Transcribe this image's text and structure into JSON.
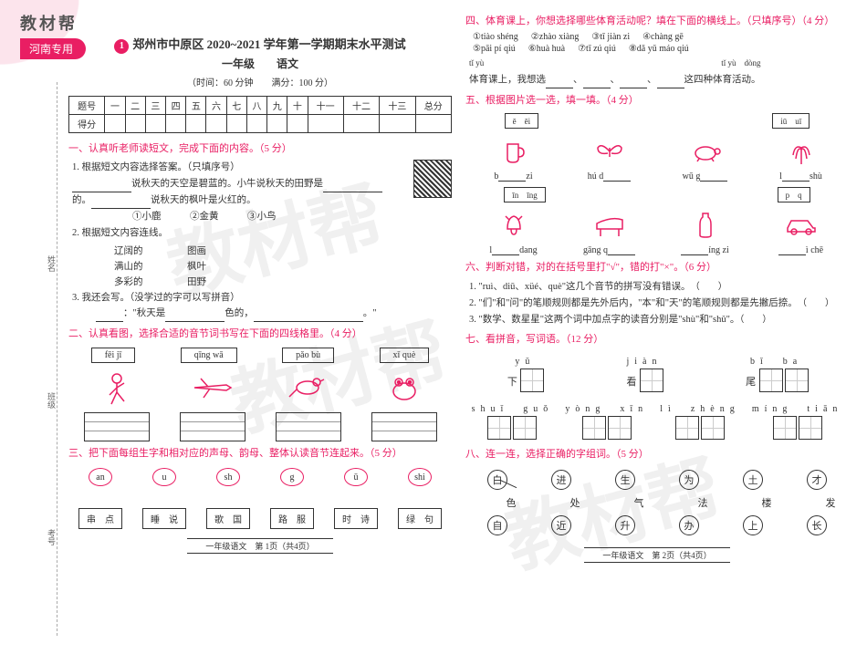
{
  "header": {
    "brand": "教材帮",
    "region": "河南专用"
  },
  "watermark": "教材帮",
  "left": {
    "title": "郑州市中原区 2020~2021 学年第一学期期末水平测试",
    "subtitle": "一年级　　语文",
    "time": "（时间：60 分钟　　满分：100 分）",
    "score_header": [
      "题号",
      "一",
      "二",
      "三",
      "四",
      "五",
      "六",
      "七",
      "八",
      "九",
      "十",
      "十一",
      "十二",
      "十三",
      "总分"
    ],
    "score_row": "得分",
    "s1": "一、认真听老师读短文，完成下面的内容。（5 分）",
    "q1": "1. 根据短文内容选择答案。（只填序号）",
    "q1_line1a": "说秋天的天空是碧蓝的。小牛说秋天的田野是",
    "q1_line2a": "的。",
    "q1_line2b": "说秋天的枫叶是火红的。",
    "q1_opts": "①小鹿　　　②金黄　　　③小鸟",
    "q2": "2. 根据短文内容连线。",
    "match": [
      [
        "辽阔的",
        "图画"
      ],
      [
        "满山的",
        "枫叶"
      ],
      [
        "多彩的",
        "田野"
      ]
    ],
    "q3": "3. 我还会写。（没学过的字可以写拼音）",
    "q3_line": "\"秋天是",
    "q3_line2": "色的，",
    "q3_line3": "。\"",
    "s2": "二、认真看图，选择合适的音节词书写在下面的四线格里。（4 分）",
    "pinyin": [
      "fēi jī",
      "qīng wā",
      "pǎo bù",
      "xǐ què"
    ],
    "s3": "三、把下面每组生字和相对应的声母、韵母、整体认读音节连起来。（5 分）",
    "circles": [
      "an",
      "u",
      "sh",
      "g",
      "ū",
      "shi"
    ],
    "boxes": [
      "串　点",
      "睡　说",
      "歌　国",
      "路　服",
      "时　诗",
      "绿　句"
    ],
    "footer": "一年级语文　第 1页（共4页）",
    "side": [
      "姓名",
      "班级",
      "考号"
    ]
  },
  "right": {
    "s4": "四、体育课上，你想选择哪些体育活动呢？填在下面的横线上。（只填序号）（4 分）",
    "opts": [
      [
        "①tiào shéng",
        "②zhào xiàng",
        "③tī jiàn zi",
        "④chàng gē"
      ],
      [
        "⑤pāi pí qiú",
        "⑥huà huà",
        "⑦tī zú qiú",
        "⑧dǎ yǔ máo qiú"
      ]
    ],
    "line_py": "tǐ yù",
    "line_py2": "tǐ yù　dòng",
    "line_txt1": "体育课上，我想选",
    "line_txt2": "、",
    "line_txt3": "、",
    "line_txt4": "、",
    "line_txt5": "这四种体育活动。",
    "s5": "五、根据图片选一选，填一填。（4 分）",
    "py_labels": [
      "ē　ēi",
      "iū　uī",
      "īn　īng",
      "p　q"
    ],
    "r1": [
      [
        "b",
        "zi"
      ],
      [
        "hú d",
        ""
      ],
      [
        "wū g",
        ""
      ],
      [
        "l",
        "shù"
      ]
    ],
    "r2": [
      [
        "l",
        "dang"
      ],
      [
        "gāng q",
        ""
      ],
      [
        "",
        "íng zi"
      ],
      [
        "",
        "ì chē"
      ]
    ],
    "s6": "六、判断对错，对的在括号里打\"√\"，错的打\"×\"。（6 分）",
    "j1": "1. \"ruì、diū、xüé、què\"这几个音节的拼写没有错误。",
    "j2": "2. \"们\"和\"问\"的笔顺规则都是先外后内，\"本\"和\"天\"的笔顺规则都是先撇后捺。",
    "j3": "3. \"数学、数星星\"这两个词中加点字的读音分别是\"shù\"和\"shǔ\"。",
    "s7": "七、看拼音，写词语。（12 分）",
    "tian": [
      [
        {
          "py": "yǔ",
          "pre": "下"
        },
        {
          "py": "jiàn",
          "pre": "看"
        },
        {
          "py": "bǐ　ba",
          "pre": "尾",
          "n": 2
        }
      ],
      [
        {
          "py": "shuǐ　guǒ",
          "n": 2
        },
        {
          "py": "yòng　xīn",
          "n": 2
        },
        {
          "py": "lì　zhèng",
          "n": 2
        },
        {
          "py": "míng　tiān",
          "n": 2
        }
      ]
    ],
    "s8": "八、连一连，选择正确的字组词。（5 分）",
    "conn": [
      {
        "chars": [
          "白",
          "自"
        ],
        "label": "色",
        "line": true
      },
      {
        "chars": [
          "进",
          "近"
        ],
        "label": "处"
      },
      {
        "chars": [
          "生",
          "升"
        ],
        "label": "气"
      },
      {
        "chars": [
          "为",
          "办"
        ],
        "label": "法"
      },
      {
        "chars": [
          "土",
          "上"
        ],
        "label": "楼"
      },
      {
        "chars": [
          "才",
          "长"
        ],
        "label": "发"
      }
    ],
    "footer": "一年级语文　第 2页（共4页）"
  }
}
